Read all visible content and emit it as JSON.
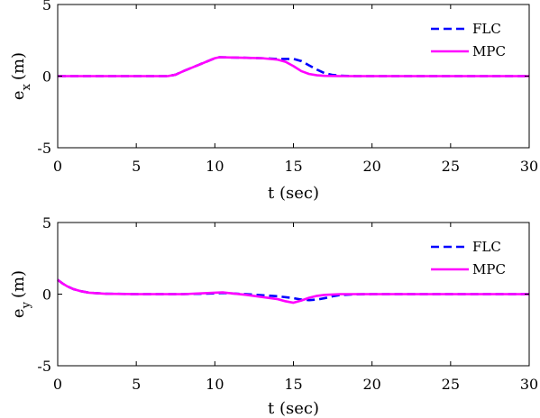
{
  "chart_data": [
    {
      "type": "line",
      "xlabel": "t (sec)",
      "ylabel": "e",
      "ylabel_subscript": "x",
      "ylabel_unit": "(m)",
      "xlim": [
        0,
        30
      ],
      "ylim": [
        -5,
        5
      ],
      "xticks": [
        "0",
        "5",
        "10",
        "15",
        "20",
        "25",
        "30"
      ],
      "yticks": [
        "5",
        "0",
        "-5"
      ],
      "grid": false,
      "legend_position": "top-right",
      "series": [
        {
          "name": "FLC",
          "color": "#0000ff",
          "style": "dashed",
          "x": [
            0,
            7,
            7.5,
            8,
            9,
            10,
            10.3,
            11,
            12,
            13,
            14,
            15,
            15.5,
            16,
            16.5,
            17,
            17.5,
            18,
            18.5,
            19,
            20,
            30
          ],
          "y": [
            0,
            0,
            0.1,
            0.35,
            0.8,
            1.25,
            1.32,
            1.3,
            1.28,
            1.25,
            1.2,
            1.2,
            1.05,
            0.75,
            0.45,
            0.2,
            0.08,
            0.03,
            0.01,
            0,
            0,
            0
          ]
        },
        {
          "name": "MPC",
          "color": "#ff00ff",
          "style": "solid",
          "x": [
            0,
            7,
            7.5,
            8,
            9,
            10,
            10.3,
            11,
            12,
            13,
            14,
            14.5,
            15,
            15.5,
            16,
            16.5,
            17,
            18,
            19,
            30
          ],
          "y": [
            0,
            0,
            0.1,
            0.35,
            0.8,
            1.25,
            1.32,
            1.3,
            1.28,
            1.25,
            1.15,
            1.0,
            0.7,
            0.35,
            0.15,
            0.06,
            0.02,
            0,
            0,
            0
          ]
        }
      ]
    },
    {
      "type": "line",
      "xlabel": "t (sec)",
      "ylabel": "e",
      "ylabel_subscript": "y",
      "ylabel_unit": "(m)",
      "xlim": [
        0,
        30
      ],
      "ylim": [
        -5,
        5
      ],
      "xticks": [
        "0",
        "5",
        "10",
        "15",
        "20",
        "25",
        "30"
      ],
      "yticks": [
        "5",
        "0",
        "-5"
      ],
      "grid": false,
      "legend_position": "top-right",
      "series": [
        {
          "name": "FLC",
          "color": "#0000ff",
          "style": "dashed",
          "x": [
            0,
            0.3,
            0.6,
            1,
            1.5,
            2,
            3,
            5,
            8,
            10,
            10.5,
            12,
            14,
            15,
            15.5,
            16,
            16.5,
            17,
            17.5,
            18,
            19,
            20,
            30
          ],
          "y": [
            1.0,
            0.75,
            0.55,
            0.35,
            0.2,
            0.1,
            0.03,
            0,
            0,
            0.05,
            0.08,
            0.0,
            -0.15,
            -0.28,
            -0.38,
            -0.42,
            -0.38,
            -0.28,
            -0.15,
            -0.06,
            -0.01,
            0,
            0
          ]
        },
        {
          "name": "MPC",
          "color": "#ff00ff",
          "style": "solid",
          "x": [
            0,
            0.3,
            0.6,
            1,
            1.5,
            2,
            3,
            5,
            8,
            10,
            10.5,
            12,
            14,
            14.5,
            15,
            15.5,
            16,
            16.5,
            17,
            18,
            19,
            30
          ],
          "y": [
            1.0,
            0.75,
            0.55,
            0.35,
            0.2,
            0.1,
            0.03,
            0,
            0,
            0.1,
            0.12,
            -0.05,
            -0.35,
            -0.5,
            -0.6,
            -0.45,
            -0.25,
            -0.12,
            -0.05,
            0,
            0,
            0
          ]
        }
      ]
    }
  ]
}
